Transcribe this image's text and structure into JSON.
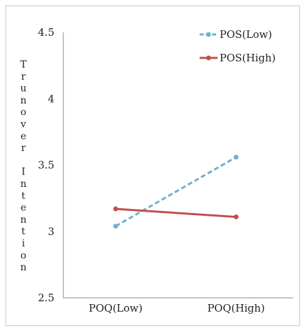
{
  "chart_data": {
    "type": "line",
    "title": "",
    "xlabel": "",
    "ylabel": "Trunover Intention",
    "categories": [
      "POQ(Low)",
      "POQ(High)"
    ],
    "ylim": [
      2.5,
      4.5
    ],
    "yticks": [
      "2.5",
      "3",
      "3.5",
      "4",
      "4.5"
    ],
    "grid": false,
    "legend_position": "top-right",
    "series": [
      {
        "name": "POS(Low)",
        "values": [
          3.04,
          3.56
        ],
        "color": "#6fb0cf",
        "dashed": true
      },
      {
        "name": "POS(High)",
        "values": [
          3.17,
          3.11
        ],
        "color": "#c0504d",
        "dashed": false
      }
    ]
  }
}
